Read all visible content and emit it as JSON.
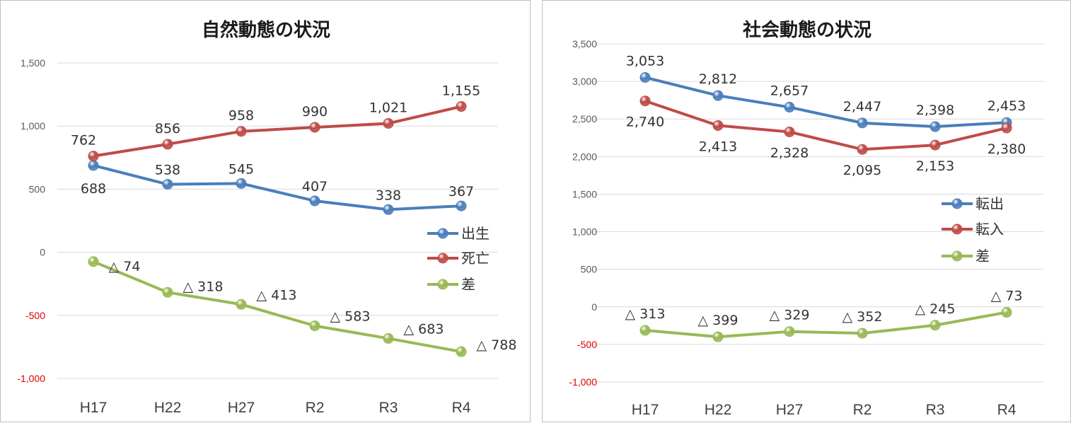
{
  "chart_data": [
    {
      "type": "line",
      "title": "自然動態の状況",
      "categories": [
        "H17",
        "H22",
        "H27",
        "R2",
        "R3",
        "R4"
      ],
      "ylim": [
        -1000,
        1500
      ],
      "yticks": [
        "1,500",
        "1,000",
        "500",
        "0",
        "-500",
        "-1,000"
      ],
      "ytick_values": [
        1500,
        1000,
        500,
        0,
        -500,
        -1000
      ],
      "grid": true,
      "legend": "right",
      "series": [
        {
          "name": "出生",
          "color": "#4a7ebb",
          "values": [
            688,
            538,
            545,
            407,
            338,
            367
          ],
          "labels": [
            "688",
            "538",
            "545",
            "407",
            "338",
            "367"
          ]
        },
        {
          "name": "死亡",
          "color": "#be4b48",
          "values": [
            762,
            856,
            958,
            990,
            1021,
            1155
          ],
          "labels": [
            "762",
            "856",
            "958",
            "990",
            "1,021",
            "1,155"
          ]
        },
        {
          "name": "差",
          "color": "#98b954",
          "values": [
            -74,
            -318,
            -413,
            -583,
            -683,
            -788
          ],
          "labels": [
            "△ 74",
            "△ 318",
            "△ 413",
            "△ 583",
            "△ 683",
            "△ 788"
          ]
        }
      ]
    },
    {
      "type": "line",
      "title": "社会動態の状況",
      "categories": [
        "H17",
        "H22",
        "H27",
        "R2",
        "R3",
        "R4"
      ],
      "ylim": [
        -1000,
        3500
      ],
      "yticks": [
        "3,500",
        "3,000",
        "2,500",
        "2,000",
        "1,500",
        "1,000",
        "500",
        "0",
        "-500",
        "-1,000"
      ],
      "ytick_values": [
        3500,
        3000,
        2500,
        2000,
        1500,
        1000,
        500,
        0,
        -500,
        -1000
      ],
      "grid": true,
      "legend": "right",
      "series": [
        {
          "name": "転出",
          "color": "#4a7ebb",
          "values": [
            3053,
            2812,
            2657,
            2447,
            2398,
            2453
          ],
          "labels": [
            "3,053",
            "2,812",
            "2,657",
            "2,447",
            "2,398",
            "2,453"
          ]
        },
        {
          "name": "転入",
          "color": "#be4b48",
          "values": [
            2740,
            2413,
            2328,
            2095,
            2153,
            2380
          ],
          "labels": [
            "2,740",
            "2,413",
            "2,328",
            "2,095",
            "2,153",
            "2,380"
          ]
        },
        {
          "name": "差",
          "color": "#98b954",
          "values": [
            -313,
            -399,
            -329,
            -352,
            -245,
            -73
          ],
          "labels": [
            "△ 313",
            "△ 399",
            "△ 329",
            "△ 352",
            "△ 245",
            "△ 73"
          ]
        }
      ]
    }
  ]
}
